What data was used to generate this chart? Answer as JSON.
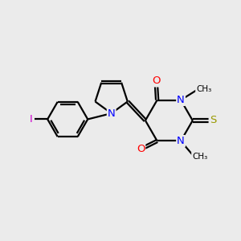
{
  "background_color": "#ebebeb",
  "bond_color": "#000000",
  "atom_colors": {
    "N": "#0000ff",
    "O": "#ff0000",
    "S": "#999900",
    "I": "#cc00cc",
    "C": "#000000"
  },
  "figsize": [
    3.0,
    3.0
  ],
  "dpi": 100
}
